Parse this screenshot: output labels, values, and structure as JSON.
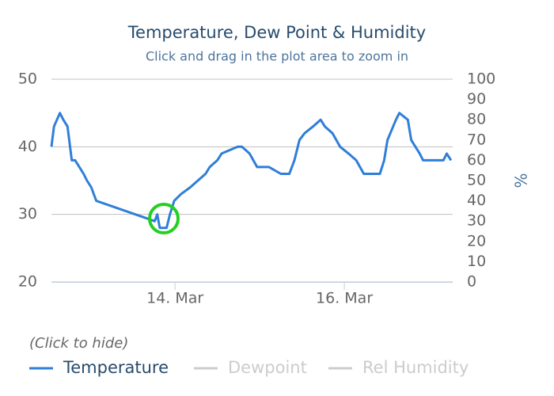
{
  "chart_data": {
    "type": "line",
    "title": "Temperature, Dew Point & Humidity",
    "subtitle": "Click and drag in the plot area to zoom in",
    "legend_note": "(Click to hide)",
    "y2_label": "%",
    "x": [
      12.54,
      12.57,
      12.64,
      12.68,
      12.73,
      12.78,
      12.82,
      12.87,
      12.92,
      12.96,
      13.01,
      13.04,
      13.07,
      13.76,
      13.79,
      13.82,
      13.9,
      13.94,
      13.99,
      14.07,
      14.18,
      14.27,
      14.36,
      14.41,
      14.5,
      14.55,
      14.74,
      14.79,
      14.88,
      14.97,
      15.11,
      15.25,
      15.35,
      15.41,
      15.47,
      15.53,
      15.63,
      15.72,
      15.77,
      15.86,
      15.95,
      16.05,
      16.14,
      16.23,
      16.33,
      16.42,
      16.47,
      16.51,
      16.61,
      16.65,
      16.75,
      16.79,
      16.89,
      16.93,
      17.03,
      17.17,
      17.21,
      17.26
    ],
    "series": [
      {
        "name": "Temperature",
        "color": "#2f7ed8",
        "visible": true,
        "values": [
          40,
          43,
          45,
          44,
          43,
          38,
          38,
          37,
          36,
          35,
          34,
          33,
          32,
          29,
          30,
          28,
          28,
          30,
          32,
          33,
          34,
          35,
          36,
          37,
          38,
          39,
          40,
          40,
          39,
          37,
          37,
          36,
          36,
          38,
          41,
          42,
          43,
          44,
          43,
          42,
          40,
          39,
          38,
          36,
          36,
          36,
          38,
          41,
          44,
          45,
          44,
          41,
          39,
          38,
          38,
          38,
          39,
          38
        ]
      },
      {
        "name": "Dewpoint",
        "color": "#cccccc",
        "visible": false
      },
      {
        "name": "Rel Humidity",
        "color": "#cccccc",
        "visible": false,
        "axis": "y2"
      }
    ],
    "xlim": [
      12.54,
      17.28
    ],
    "xticks": [
      {
        "value": 14,
        "label": "14. Mar"
      },
      {
        "value": 16,
        "label": "16. Mar"
      }
    ],
    "ylim": [
      20,
      50
    ],
    "yticks": [
      20,
      30,
      40,
      50
    ],
    "y2lim": [
      0,
      100
    ],
    "y2ticks": [
      0,
      10,
      20,
      30,
      40,
      50,
      60,
      70,
      80,
      90,
      100
    ],
    "grid": true
  }
}
